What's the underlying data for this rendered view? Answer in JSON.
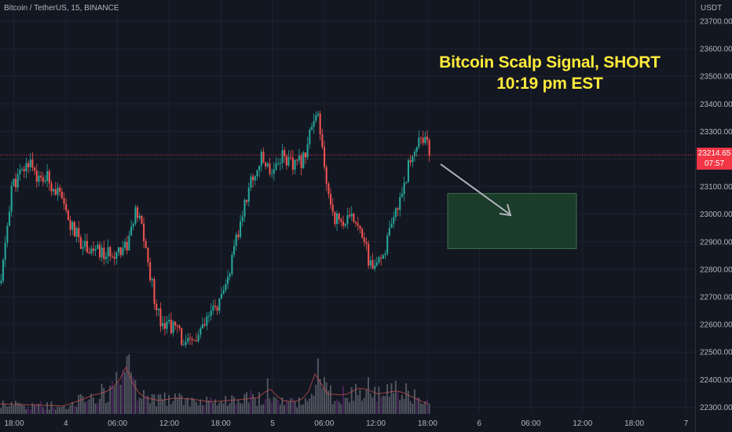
{
  "header": {
    "symbol": "Bitcoin / TetherUS, 15, BINANCE"
  },
  "annotation": {
    "line1": "Bitcoin Scalp Signal, SHORT",
    "line2": "10:19 pm EST"
  },
  "price_axis": {
    "unit": "USDT",
    "ticks": [
      "23700.00",
      "23600.00",
      "23500.00",
      "23400.00",
      "23300.00",
      "23200.00",
      "23100.00",
      "23000.00",
      "22900.00",
      "22800.00",
      "22700.00",
      "22600.00",
      "22500.00",
      "22400.00",
      "22300.00"
    ]
  },
  "last_price": {
    "price": "23214.65",
    "countdown": "07:57"
  },
  "colors": {
    "up": "#26a69a",
    "down": "#ef5350",
    "annotation": "#ffeb3b",
    "badge": "#f23645",
    "target_zone": "#1e4a2c"
  },
  "chart_data": {
    "type": "candlestick",
    "title": "",
    "ylabel": "USDT",
    "ylim": [
      22250,
      23750
    ],
    "x_ticks": [
      "18:00",
      "4",
      "06:00",
      "12:00",
      "18:00",
      "5",
      "06:00",
      "12:00",
      "18:00",
      "6",
      "06:00",
      "12:00",
      "18:00",
      "7"
    ],
    "target_zone": {
      "price_high": 23075,
      "price_low": 22875
    },
    "close_path": [
      [
        0,
        22750
      ],
      [
        5,
        23100
      ],
      [
        10,
        23150
      ],
      [
        14,
        23200
      ],
      [
        18,
        23120
      ],
      [
        22,
        23130
      ],
      [
        27,
        23080
      ],
      [
        33,
        22960
      ],
      [
        38,
        22900
      ],
      [
        44,
        22870
      ],
      [
        50,
        22850
      ],
      [
        55,
        22870
      ],
      [
        60,
        22890
      ],
      [
        64,
        23000
      ],
      [
        67,
        22960
      ],
      [
        70,
        22820
      ],
      [
        73,
        22700
      ],
      [
        76,
        22620
      ],
      [
        80,
        22600
      ],
      [
        84,
        22580
      ],
      [
        88,
        22520
      ],
      [
        92,
        22540
      ],
      [
        96,
        22580
      ],
      [
        100,
        22640
      ],
      [
        106,
        22700
      ],
      [
        112,
        22900
      ],
      [
        118,
        23100
      ],
      [
        124,
        23200
      ],
      [
        129,
        23160
      ],
      [
        134,
        23220
      ],
      [
        139,
        23170
      ],
      [
        144,
        23200
      ],
      [
        147,
        23300
      ],
      [
        151,
        23350
      ],
      [
        155,
        23100
      ],
      [
        159,
        22990
      ],
      [
        163,
        22970
      ],
      [
        167,
        22980
      ],
      [
        171,
        22970
      ],
      [
        175,
        22830
      ],
      [
        179,
        22800
      ],
      [
        183,
        22880
      ],
      [
        187,
        22970
      ],
      [
        192,
        23120
      ],
      [
        196,
        23220
      ],
      [
        200,
        23290
      ],
      [
        202,
        23260
      ],
      [
        204,
        23230
      ]
    ],
    "volume_profile": [
      [
        0,
        15
      ],
      [
        30,
        12
      ],
      [
        38,
        20
      ],
      [
        44,
        28
      ],
      [
        50,
        32
      ],
      [
        56,
        45
      ],
      [
        60,
        70
      ],
      [
        64,
        40
      ],
      [
        68,
        25
      ],
      [
        76,
        20
      ],
      [
        84,
        24
      ],
      [
        92,
        22
      ],
      [
        100,
        18
      ],
      [
        116,
        22
      ],
      [
        124,
        25
      ],
      [
        128,
        40
      ],
      [
        134,
        20
      ],
      [
        140,
        18
      ],
      [
        146,
        25
      ],
      [
        150,
        60
      ],
      [
        156,
        30
      ],
      [
        164,
        28
      ],
      [
        172,
        40
      ],
      [
        180,
        30
      ],
      [
        190,
        35
      ],
      [
        200,
        20
      ],
      [
        204,
        15
      ]
    ]
  }
}
